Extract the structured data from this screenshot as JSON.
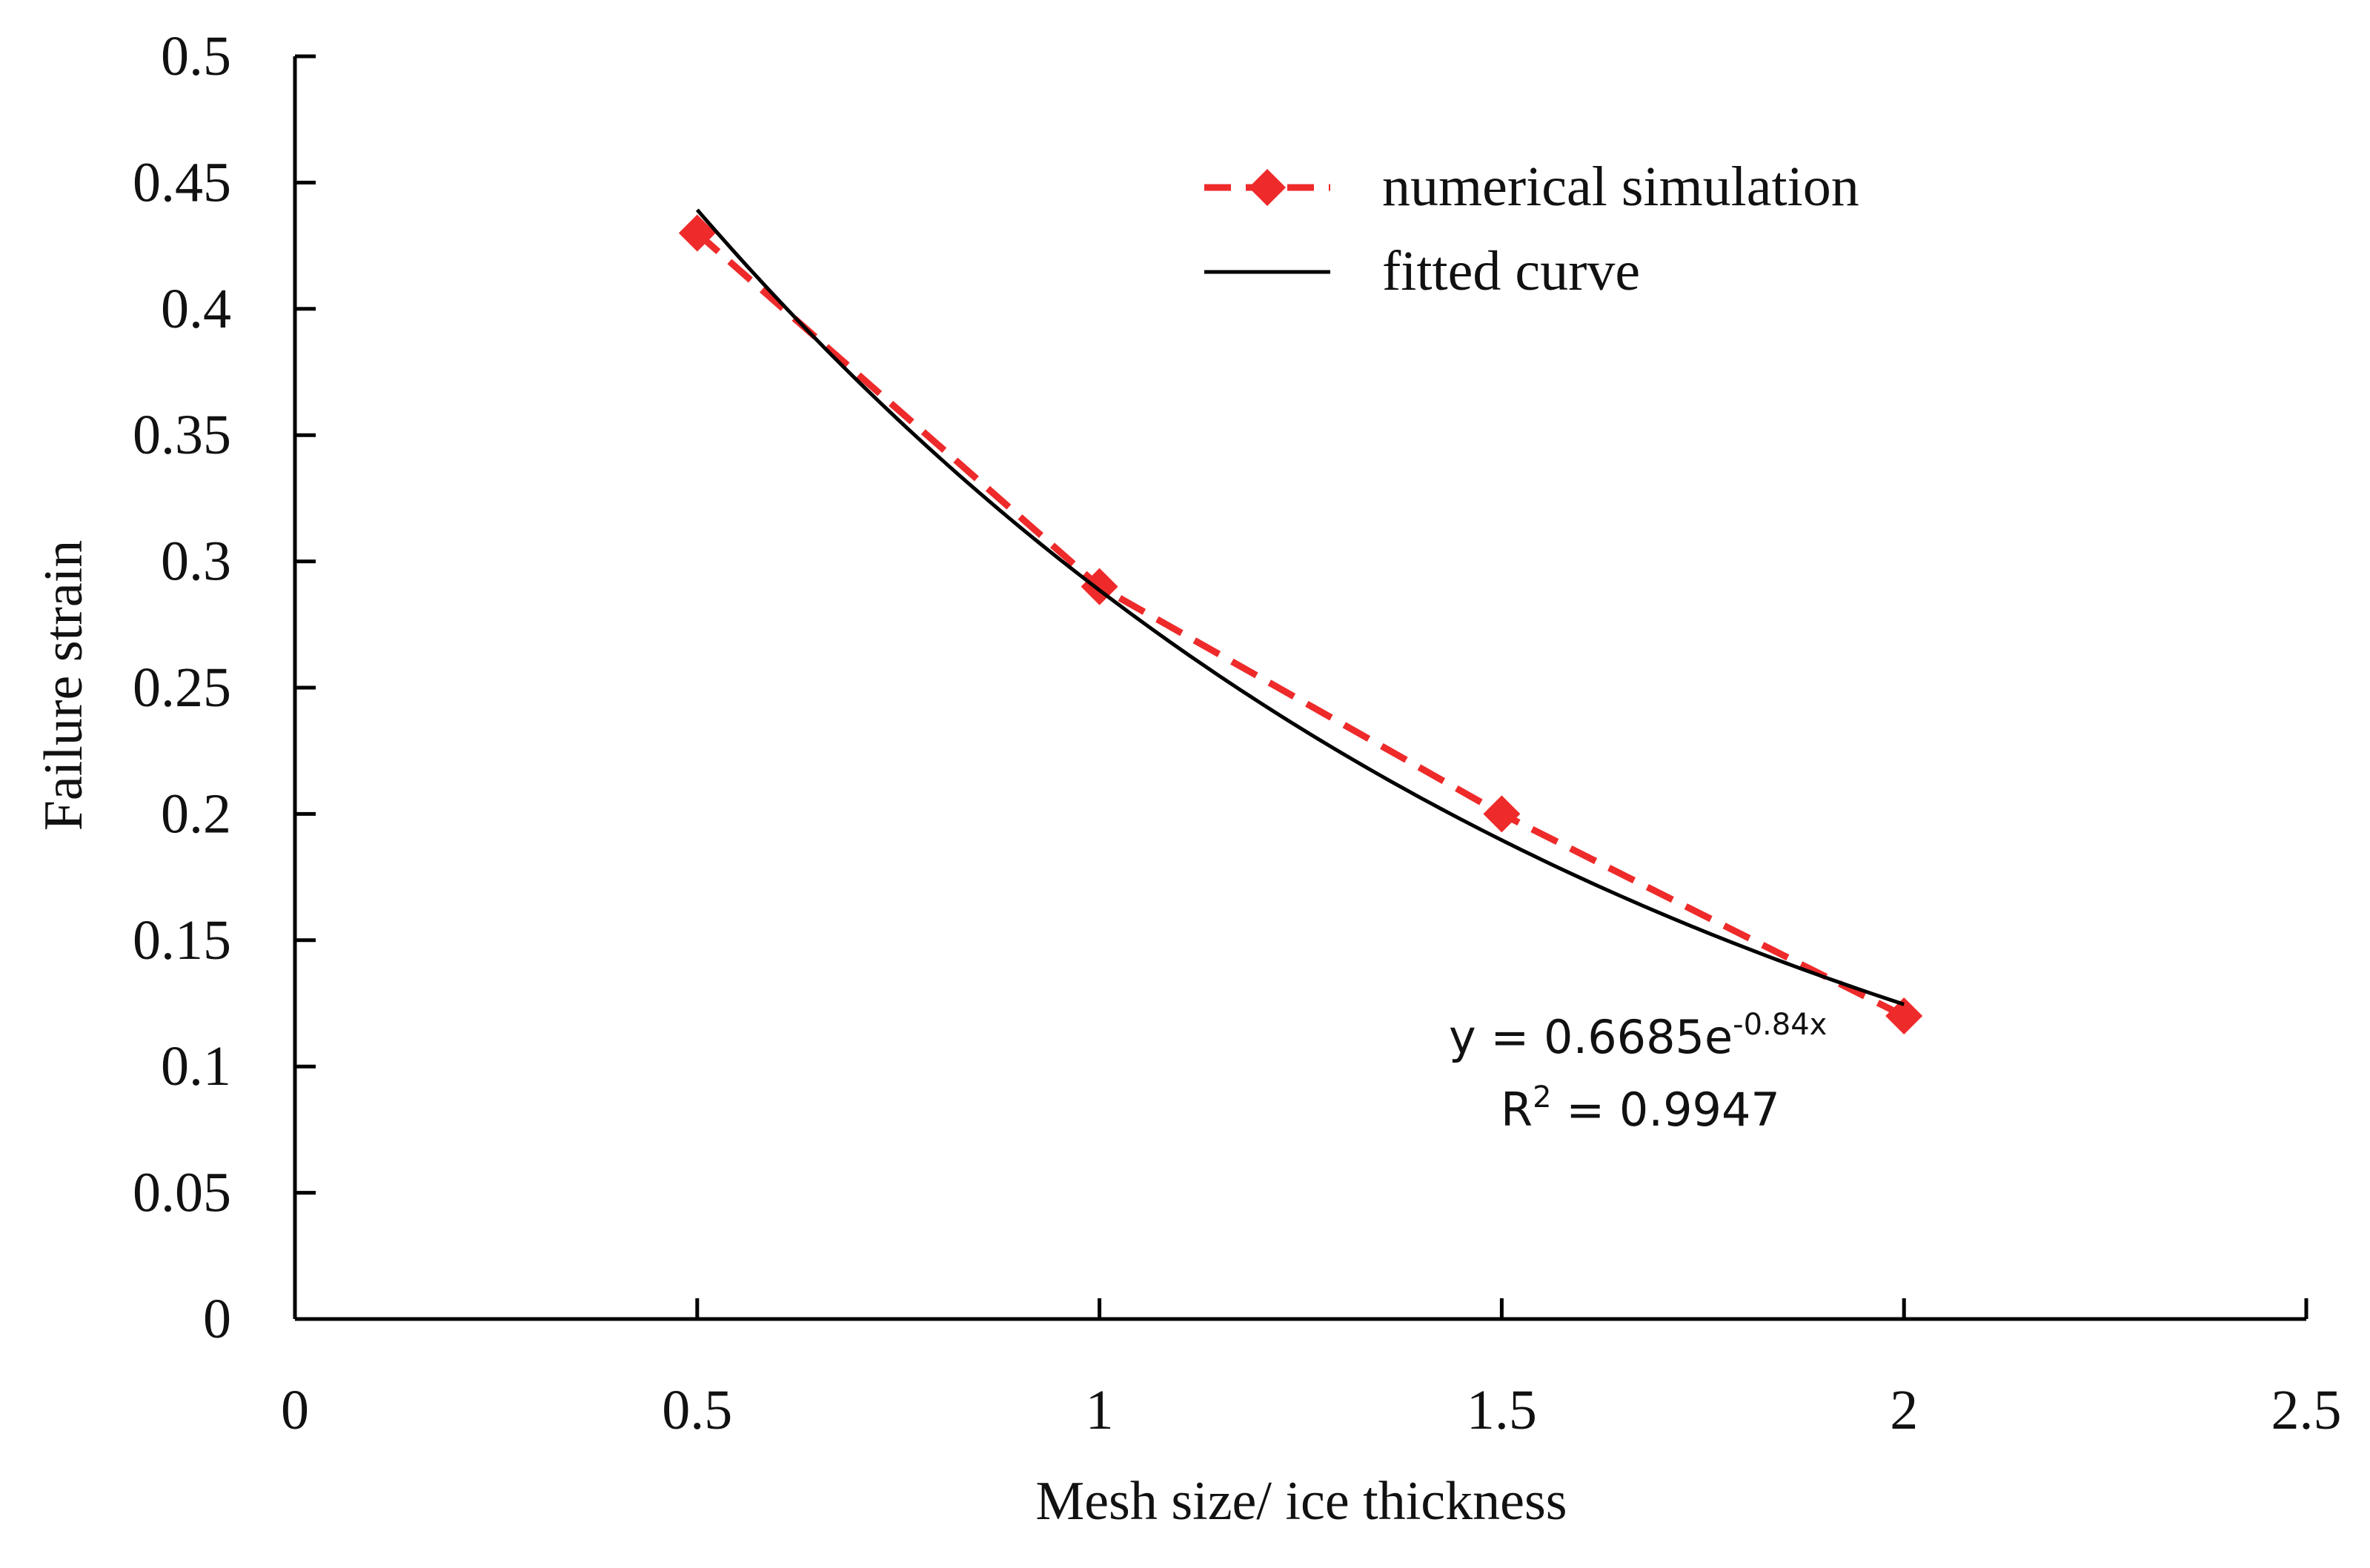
{
  "chart_data": {
    "type": "line",
    "title": "",
    "xlabel": "Mesh size/ ice thickness",
    "ylabel": "Failure strain",
    "xlim": [
      0,
      2.5
    ],
    "ylim": [
      0,
      0.5
    ],
    "x_ticks": [
      0,
      0.5,
      1,
      1.5,
      2,
      2.5
    ],
    "x_tick_labels": [
      "0",
      "0.5",
      "1",
      "1.5",
      "2",
      "2.5"
    ],
    "y_ticks": [
      0,
      0.05,
      0.1,
      0.15,
      0.2,
      0.25,
      0.3,
      0.35,
      0.4,
      0.45,
      0.5
    ],
    "y_tick_labels": [
      "0",
      "0.05",
      "0.1",
      "0.15",
      "0.2",
      "0.25",
      "0.3",
      "0.35",
      "0.4",
      "0.45",
      "0.5"
    ],
    "grid": false,
    "legend_position": "top-right",
    "series": [
      {
        "name": "numerical simulation",
        "style": "dashed-line-diamond-markers",
        "color": "#ee2a2a",
        "x": [
          0.5,
          1,
          1.5,
          2
        ],
        "values": [
          0.43,
          0.29,
          0.2,
          0.12
        ]
      },
      {
        "name": "fitted curve",
        "style": "solid-line",
        "color": "#000000",
        "equation": {
          "a": 0.6685,
          "b": -0.84
        },
        "x_range": [
          0.5,
          2
        ]
      }
    ],
    "annotation": {
      "equation_prefix": "y = 0.6685e",
      "equation_exponent": "-0.84x",
      "r2_prefix": "R",
      "r2_superscript": "2",
      "r2_suffix": " = 0.9947"
    }
  }
}
